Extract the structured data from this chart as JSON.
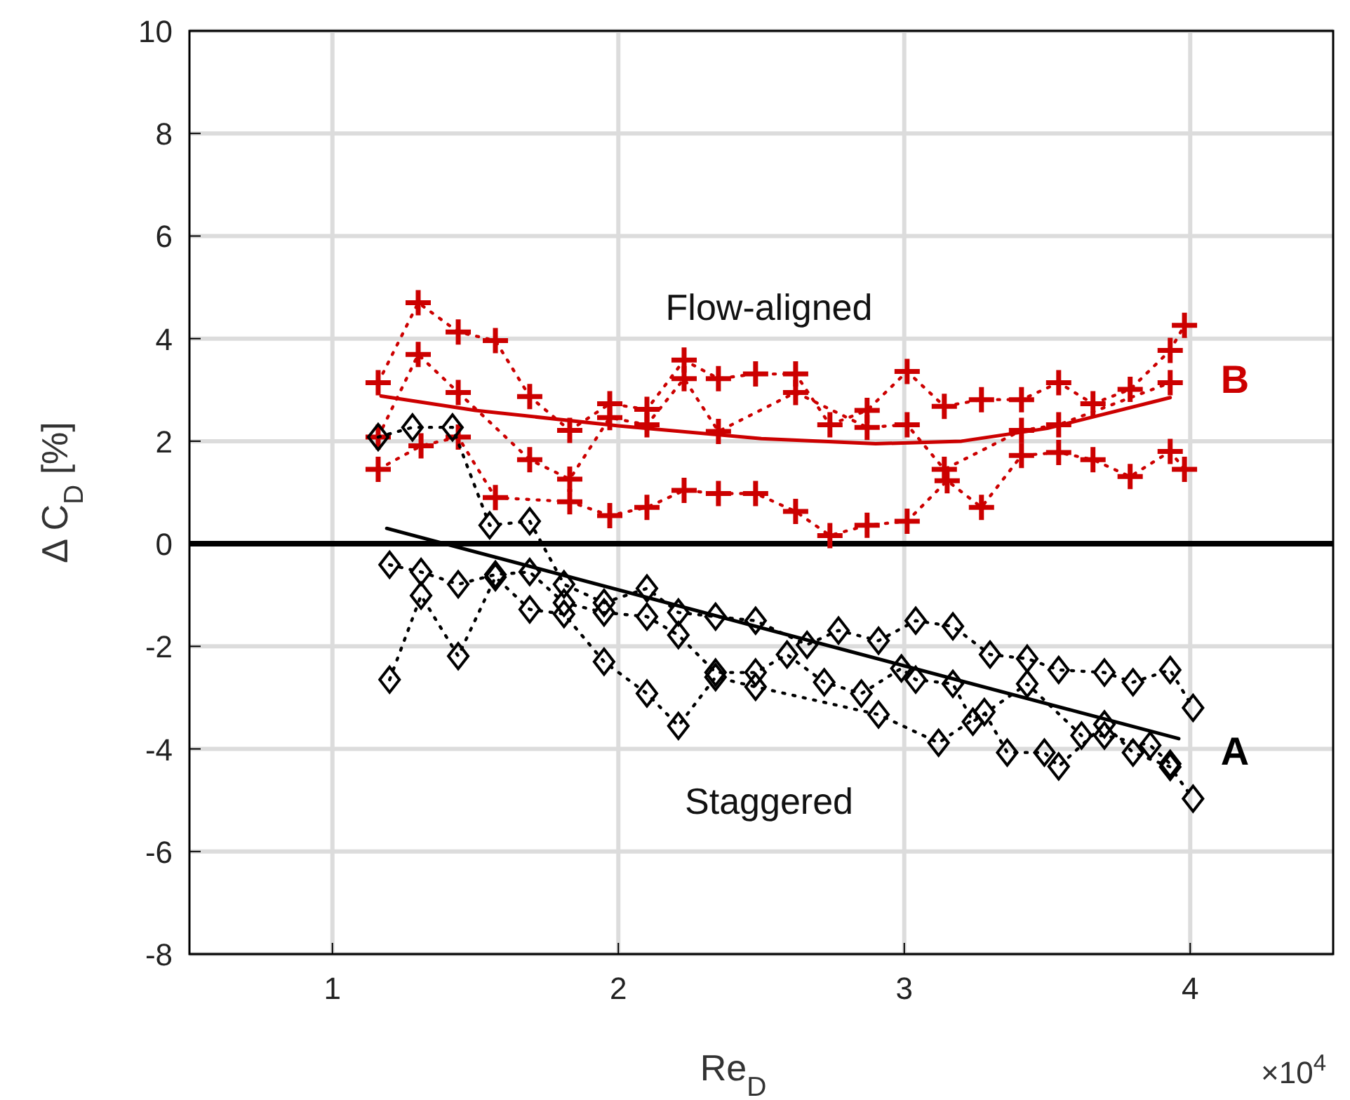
{
  "chart_data": {
    "type": "line",
    "xlabel": "Re$_{D}$",
    "ylabel": "Δ C$_{D}$ [%]",
    "xlim": [
      0.5,
      4.5
    ],
    "ylim": [
      -8,
      10
    ],
    "xticks": [
      1,
      2,
      3,
      4
    ],
    "yticks": [
      -8,
      -6,
      -4,
      -2,
      0,
      2,
      4,
      6,
      8,
      10
    ],
    "grid": true,
    "ref_lines": [
      {
        "axis": "y",
        "value": 0,
        "color": "#000000"
      }
    ],
    "annotations": [
      "Flow-aligned",
      "B",
      "Staggered",
      "A",
      "×10$^{4}$"
    ],
    "series": [
      {
        "type": "line",
        "color": "#cc0000",
        "marker": "cross",
        "line_style": "dotted",
        "x": [
          1.16,
          1.3,
          1.44,
          1.57,
          1.69,
          1.83,
          1.97,
          2.1,
          2.23,
          2.35,
          2.48,
          2.62,
          2.74,
          2.87,
          3.01,
          3.14,
          3.27,
          3.41,
          3.54,
          3.66,
          3.79,
          3.93,
          3.98
        ],
        "values": [
          3.14,
          4.7,
          4.13,
          3.96,
          2.87,
          2.21,
          2.73,
          2.62,
          3.58,
          3.22,
          3.31,
          3.31,
          2.32,
          2.6,
          3.36,
          2.68,
          2.81,
          2.81,
          3.14,
          2.73,
          3.01,
          3.77,
          4.26
        ]
      },
      {
        "type": "line",
        "color": "#cc0000",
        "marker": "cross",
        "line_style": "dotted",
        "x": [
          1.16,
          1.3,
          1.44,
          1.69,
          1.83,
          1.97,
          2.1,
          2.23,
          2.35,
          2.62,
          2.87,
          3.01,
          3.14,
          3.41,
          3.54,
          3.93
        ],
        "values": [
          2.08,
          3.69,
          2.95,
          1.64,
          1.26,
          2.46,
          2.32,
          3.22,
          2.19,
          2.95,
          2.27,
          2.32,
          1.45,
          2.21,
          2.32,
          3.14
        ]
      },
      {
        "type": "line",
        "color": "#cc0000",
        "marker": "cross",
        "line_style": "dotted",
        "x": [
          1.16,
          1.31,
          1.44,
          1.57,
          1.83,
          1.97,
          2.1,
          2.23,
          2.35,
          2.48,
          2.62,
          2.74,
          2.87,
          3.01,
          3.15,
          3.27,
          3.41,
          3.54,
          3.66,
          3.79,
          3.93,
          3.98
        ],
        "values": [
          1.45,
          1.91,
          2.08,
          0.9,
          0.82,
          0.55,
          0.71,
          1.04,
          0.98,
          0.98,
          0.63,
          0.16,
          0.36,
          0.44,
          1.23,
          0.71,
          1.72,
          1.78,
          1.64,
          1.31,
          1.8,
          1.45
        ]
      },
      {
        "type": "line",
        "color": "#cc0000",
        "marker": "none",
        "line_style": "solid",
        "x": [
          1.17,
          1.5,
          2.0,
          2.5,
          2.9,
          3.2,
          3.5,
          3.93
        ],
        "values": [
          2.88,
          2.6,
          2.3,
          2.05,
          1.95,
          2.0,
          2.25,
          2.85
        ]
      },
      {
        "type": "line",
        "color": "#000000",
        "marker": "diamond",
        "line_style": "dotted",
        "x": [
          1.16,
          1.28,
          1.42,
          1.55,
          1.69,
          1.81,
          1.95,
          2.1,
          2.21,
          2.34,
          2.48,
          2.66,
          2.77,
          2.91,
          3.04,
          3.17,
          3.3,
          3.43,
          3.54,
          3.7,
          3.8,
          3.93,
          4.01
        ],
        "values": [
          2.08,
          2.27,
          2.27,
          0.36,
          0.44,
          -0.79,
          -1.15,
          -0.87,
          -1.34,
          -1.42,
          -1.5,
          -1.97,
          -1.69,
          -1.89,
          -1.5,
          -1.61,
          -2.16,
          -2.24,
          -2.46,
          -2.51,
          -2.7,
          -2.46,
          -3.2
        ]
      },
      {
        "type": "line",
        "color": "#000000",
        "marker": "diamond",
        "line_style": "dotted",
        "x": [
          1.2,
          1.31,
          1.44,
          1.57,
          1.69,
          1.81,
          1.95,
          2.1,
          2.21,
          2.34,
          2.48,
          2.59,
          2.72,
          2.85,
          2.99,
          3.04,
          3.17,
          3.24,
          3.43,
          3.62,
          3.7,
          3.86,
          3.93
        ],
        "values": [
          -0.41,
          -0.55,
          -0.79,
          -0.6,
          -0.55,
          -1.15,
          -1.34,
          -1.42,
          -1.78,
          -2.51,
          -2.51,
          -2.16,
          -2.7,
          -2.92,
          -2.43,
          -2.65,
          -2.73,
          -3.47,
          -2.73,
          -3.74,
          -3.74,
          -3.93,
          -4.29
        ]
      },
      {
        "type": "line",
        "color": "#000000",
        "marker": "diamond",
        "line_style": "dotted",
        "x": [
          1.2,
          1.31,
          1.44,
          1.57,
          1.69,
          1.81,
          1.95,
          2.1,
          2.21,
          2.34,
          2.48,
          2.91,
          3.12,
          3.28,
          3.36,
          3.49,
          3.54,
          3.7,
          3.8,
          3.93,
          4.01
        ],
        "values": [
          -2.65,
          -1.01,
          -2.19,
          -0.65,
          -1.28,
          -1.37,
          -2.3,
          -2.92,
          -3.55,
          -2.6,
          -2.79,
          -3.33,
          -3.88,
          -3.28,
          -4.07,
          -4.07,
          -4.34,
          -3.52,
          -4.07,
          -4.35,
          -4.97
        ]
      },
      {
        "type": "line",
        "color": "#000000",
        "marker": "none",
        "line_style": "solid",
        "x": [
          1.19,
          3.96
        ],
        "values": [
          0.3,
          -3.8
        ]
      }
    ]
  }
}
